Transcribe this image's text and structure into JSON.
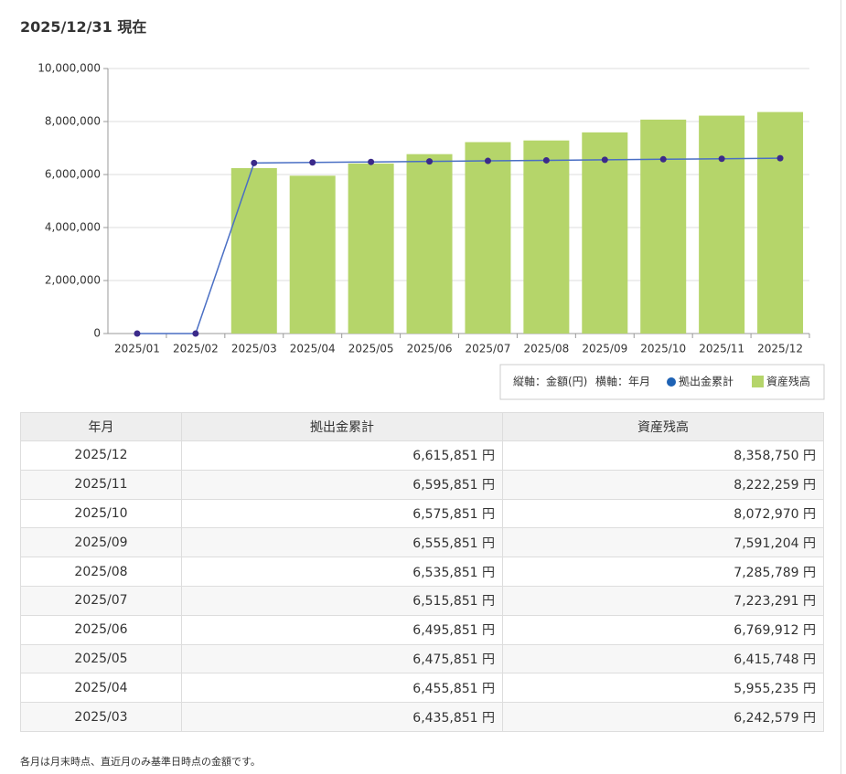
{
  "header": {
    "title": "2025/12/31 現在"
  },
  "chart_data": {
    "type": "bar",
    "categories": [
      "2025/01",
      "2025/02",
      "2025/03",
      "2025/04",
      "2025/05",
      "2025/06",
      "2025/07",
      "2025/08",
      "2025/09",
      "2025/10",
      "2025/11",
      "2025/12"
    ],
    "series": [
      {
        "name": "拠出金累計",
        "type": "line",
        "color": "#4a6fc4",
        "marker_color": "#3b2a8a",
        "values": [
          0,
          0,
          6435851,
          6455851,
          6475851,
          6495851,
          6515851,
          6535851,
          6555851,
          6575851,
          6595851,
          6615851
        ]
      },
      {
        "name": "資産残高",
        "type": "bar",
        "color": "#b5d56a",
        "values": [
          null,
          null,
          6242579,
          5955235,
          6415748,
          6769912,
          7223291,
          7285789,
          7591204,
          8072970,
          8222259,
          8358750
        ]
      }
    ],
    "y_label": "縦軸：金額(円)",
    "x_label": "横軸：年月",
    "ylim": [
      0,
      10000000
    ],
    "yticks": [
      0,
      {
        "value": 2000000,
        "label": "2,000,000"
      },
      {
        "value": 4000000,
        "label": "4,000,000"
      },
      {
        "value": 6000000,
        "label": "6,000,000"
      },
      {
        "value": 8000000,
        "label": "8,000,000"
      },
      {
        "value": 10000000,
        "label": "10,000,000"
      }
    ],
    "grid": true,
    "legend": "bottom-right"
  },
  "table": {
    "columns": [
      "年月",
      "拠出金累計",
      "資産残高"
    ],
    "rows": [
      [
        "2025/12",
        "6,615,851 円",
        "8,358,750 円"
      ],
      [
        "2025/11",
        "6,595,851 円",
        "8,222,259 円"
      ],
      [
        "2025/10",
        "6,575,851 円",
        "8,072,970 円"
      ],
      [
        "2025/09",
        "6,555,851 円",
        "7,591,204 円"
      ],
      [
        "2025/08",
        "6,535,851 円",
        "7,285,789 円"
      ],
      [
        "2025/07",
        "6,515,851 円",
        "7,223,291 円"
      ],
      [
        "2025/06",
        "6,495,851 円",
        "6,769,912 円"
      ],
      [
        "2025/05",
        "6,475,851 円",
        "6,415,748 円"
      ],
      [
        "2025/04",
        "6,455,851 円",
        "5,955,235 円"
      ],
      [
        "2025/03",
        "6,435,851 円",
        "6,242,579 円"
      ]
    ]
  },
  "footnote": "各月は月末時点、直近月のみ基準日時点の金額です。"
}
